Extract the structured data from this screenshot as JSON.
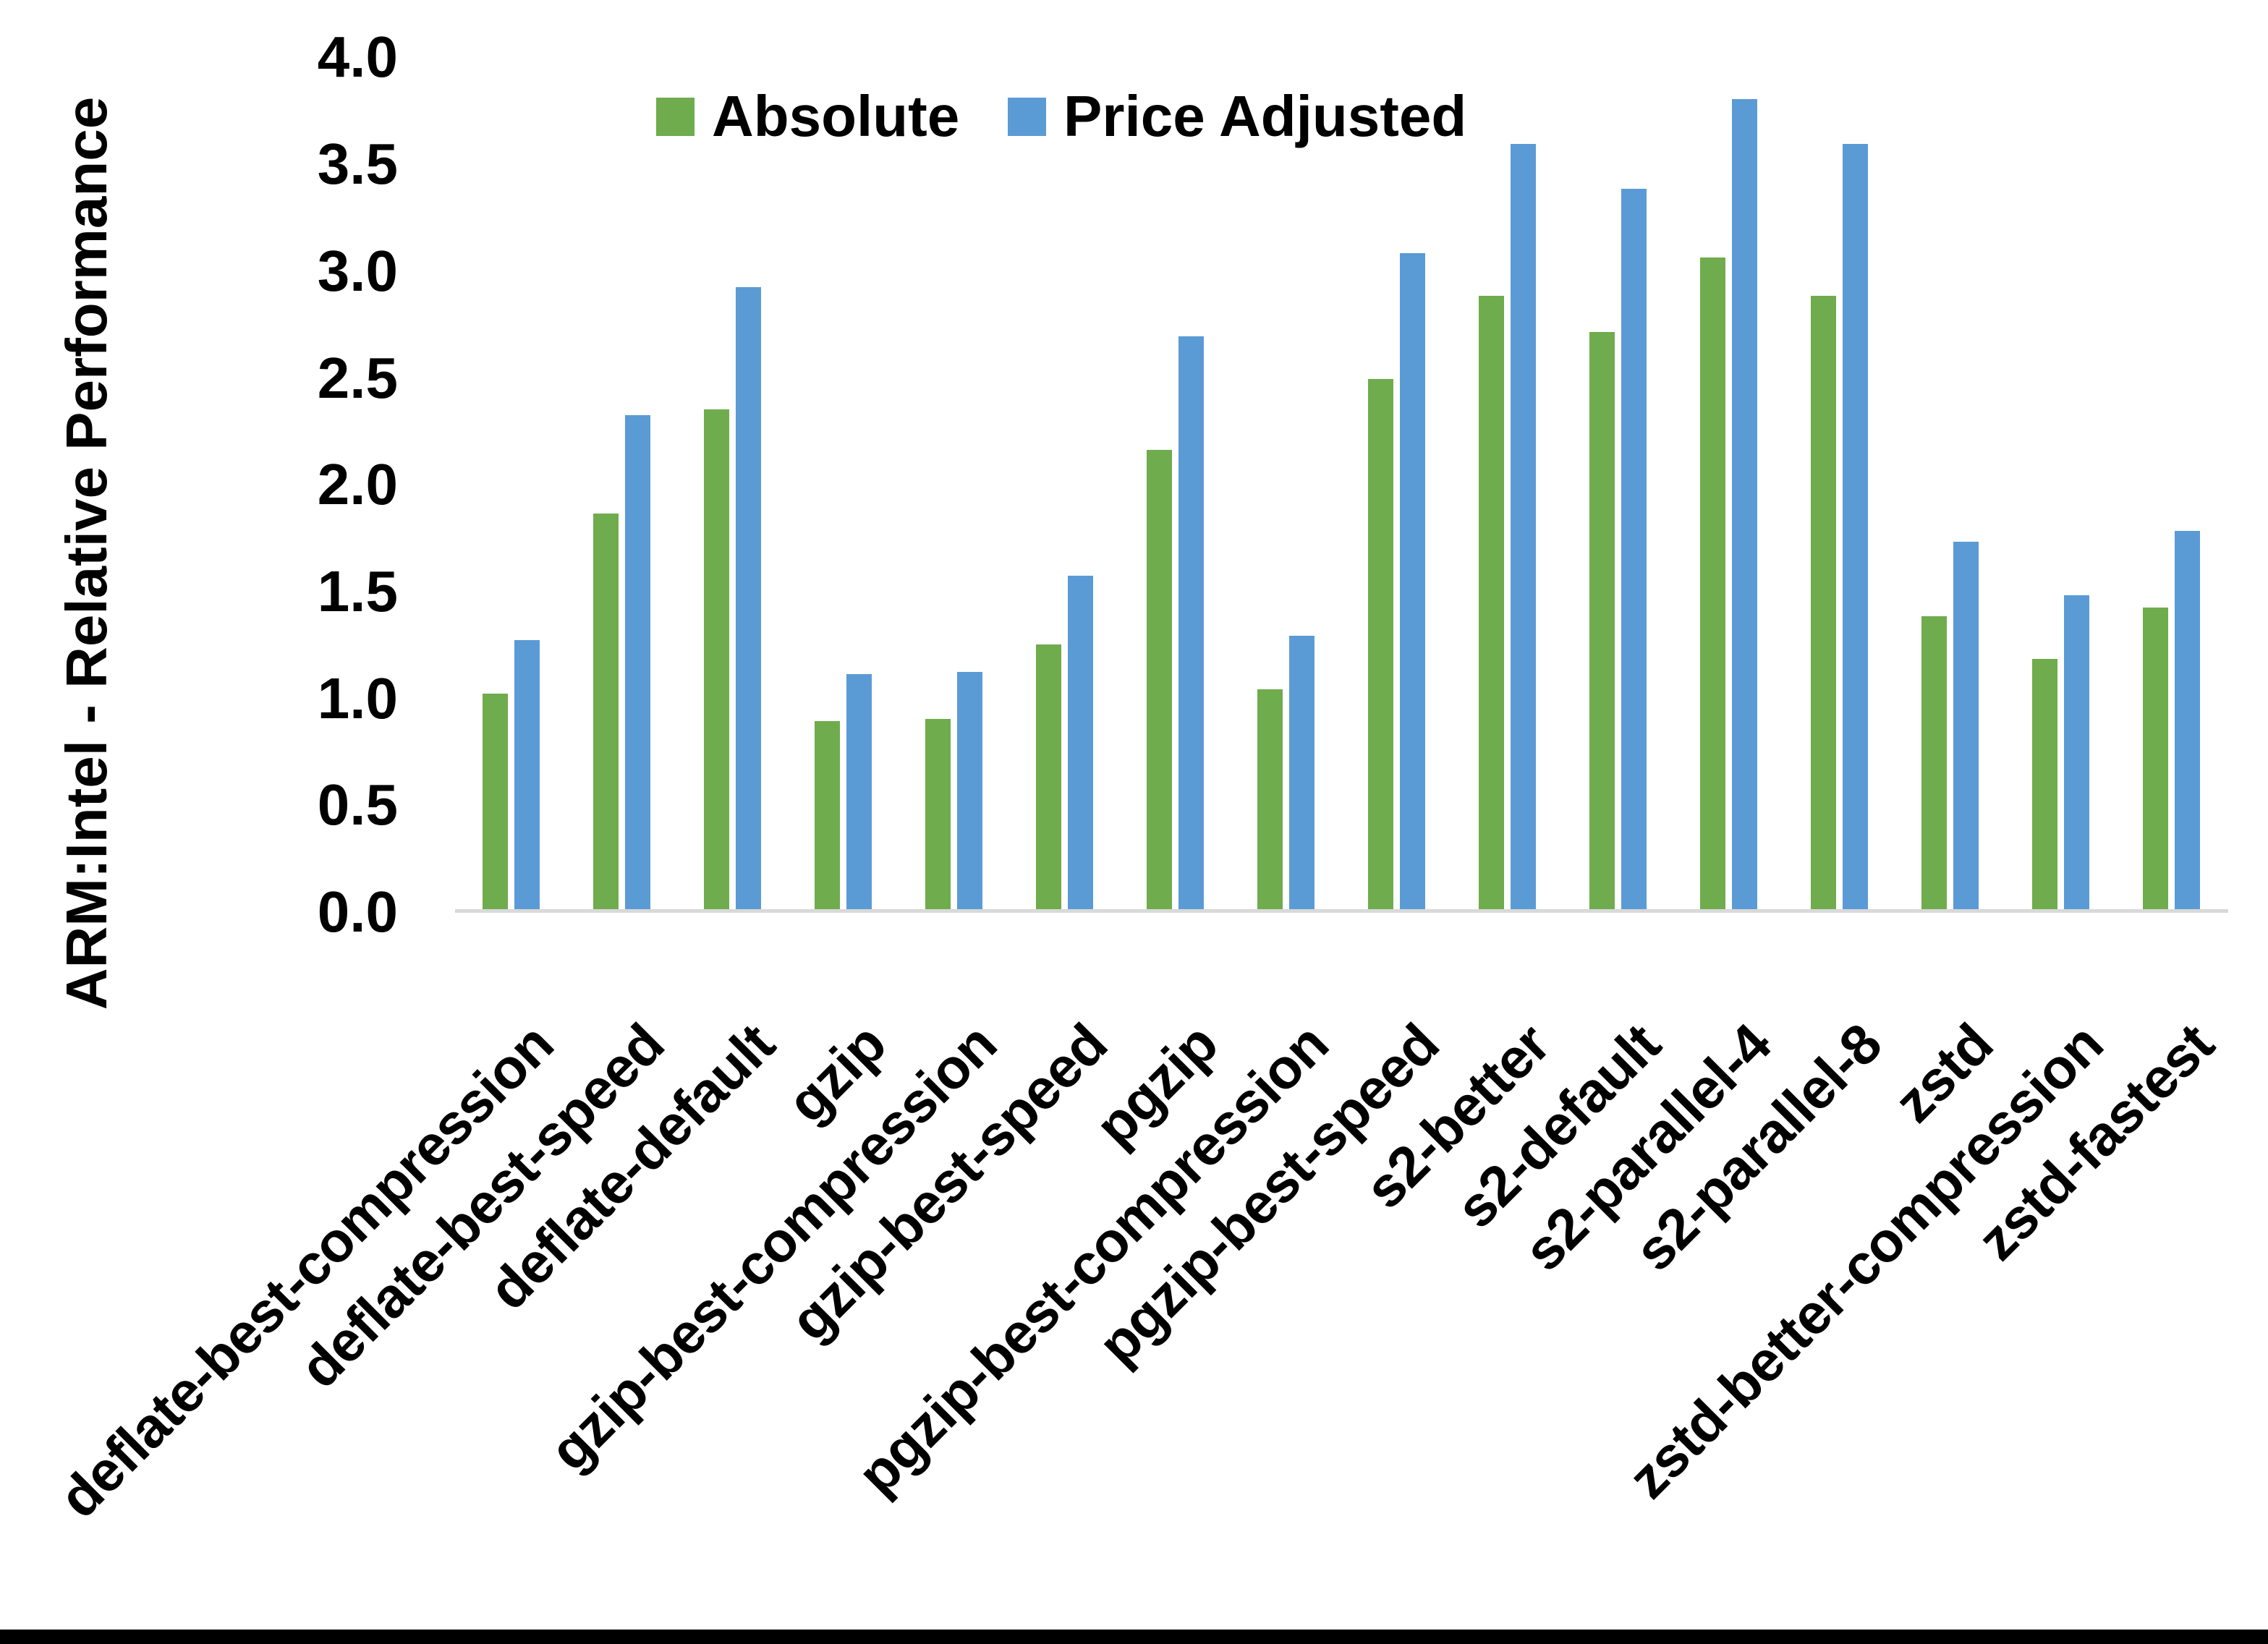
{
  "chart_data": {
    "type": "bar",
    "title": "",
    "ylabel": "ARM:Intel - Relative Performance",
    "xlabel": "",
    "ylim": [
      0.0,
      4.0
    ],
    "ytick_step": 0.5,
    "yticks": [
      "0.0",
      "0.5",
      "1.0",
      "1.5",
      "2.0",
      "2.5",
      "3.0",
      "3.5",
      "4.0"
    ],
    "grid": false,
    "legend_position": "top-center",
    "categories": [
      "deflate-best-compression",
      "deflate-best-speed",
      "deflate-default",
      "gzip",
      "gzip-best-compression",
      "gzip-best-speed",
      "pgzip",
      "pgzip-best-compression",
      "pgzip-best-speed",
      "s2-better",
      "s2-default",
      "s2-parallel-4",
      "s2-parallel-8",
      "zstd",
      "zstd-better-compression",
      "zstd-fastest"
    ],
    "series": [
      {
        "name": "Absolute",
        "color": "#6FAC4D",
        "values": [
          1.01,
          1.85,
          2.34,
          0.88,
          0.89,
          1.24,
          2.15,
          1.03,
          2.48,
          2.87,
          2.7,
          3.05,
          2.87,
          1.37,
          1.17,
          1.41
        ]
      },
      {
        "name": "Price Adjusted",
        "color": "#5B9BD5",
        "values": [
          1.26,
          2.31,
          2.91,
          1.1,
          1.11,
          1.56,
          2.68,
          1.28,
          3.07,
          3.58,
          3.37,
          3.79,
          3.58,
          1.72,
          1.47,
          1.77
        ]
      }
    ],
    "axis_line_color": "#d9d9d9",
    "text_color": "#000000"
  }
}
